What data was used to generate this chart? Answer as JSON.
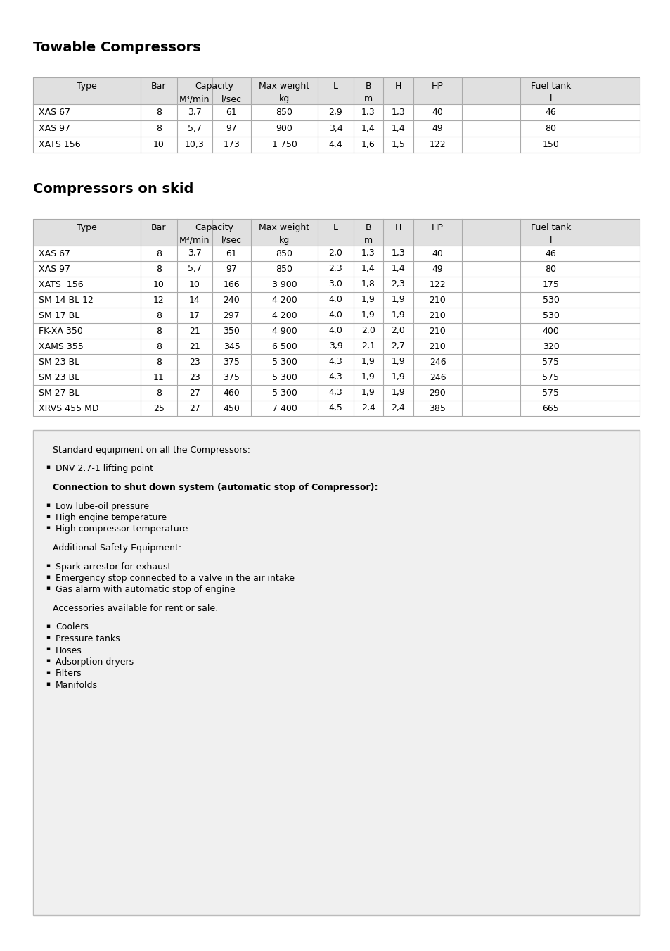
{
  "page_bg": "#ffffff",
  "title1": "Towable Compressors",
  "title2": "Compressors on skid",
  "table1_data": [
    [
      "XAS 67",
      "8",
      "3,7",
      "61",
      "850",
      "2,9",
      "1,3",
      "1,3",
      "40",
      "46"
    ],
    [
      "XAS 97",
      "8",
      "5,7",
      "97",
      "900",
      "3,4",
      "1,4",
      "1,4",
      "49",
      "80"
    ],
    [
      "XATS 156",
      "10",
      "10,3",
      "173",
      "1 750",
      "4,4",
      "1,6",
      "1,5",
      "122",
      "150"
    ]
  ],
  "table2_data": [
    [
      "XAS 67",
      "8",
      "3,7",
      "61",
      "850",
      "2,0",
      "1,3",
      "1,3",
      "40",
      "46"
    ],
    [
      "XAS 97",
      "8",
      "5,7",
      "97",
      "850",
      "2,3",
      "1,4",
      "1,4",
      "49",
      "80"
    ],
    [
      "XATS  156",
      "10",
      "10",
      "166",
      "3 900",
      "3,0",
      "1,8",
      "2,3",
      "122",
      "175"
    ],
    [
      "SM 14 BL 12",
      "12",
      "14",
      "240",
      "4 200",
      "4,0",
      "1,9",
      "1,9",
      "210",
      "530"
    ],
    [
      "SM 17 BL",
      "8",
      "17",
      "297",
      "4 200",
      "4,0",
      "1,9",
      "1,9",
      "210",
      "530"
    ],
    [
      "FK-XA 350",
      "8",
      "21",
      "350",
      "4 900",
      "4,0",
      "2,0",
      "2,0",
      "210",
      "400"
    ],
    [
      "XAMS 355",
      "8",
      "21",
      "345",
      "6 500",
      "3,9",
      "2,1",
      "2,7",
      "210",
      "320"
    ],
    [
      "SM 23 BL",
      "8",
      "23",
      "375",
      "5 300",
      "4,3",
      "1,9",
      "1,9",
      "246",
      "575"
    ],
    [
      "SM 23 BL",
      "11",
      "23",
      "375",
      "5 300",
      "4,3",
      "1,9",
      "1,9",
      "246",
      "575"
    ],
    [
      "SM 27 BL",
      "8",
      "27",
      "460",
      "5 300",
      "4,3",
      "1,9",
      "1,9",
      "290",
      "575"
    ],
    [
      "XRVS 455 MD",
      "25",
      "27",
      "450",
      "7 400",
      "4,5",
      "2,4",
      "2,4",
      "385",
      "665"
    ]
  ],
  "info_box_text": [
    {
      "text": "Standard equipment on all the Compressors:",
      "bold": false,
      "bullet": false
    },
    {
      "text": "",
      "bold": false,
      "bullet": false
    },
    {
      "text": "DNV 2.7-1 lifting point",
      "bold": false,
      "bullet": true
    },
    {
      "text": "",
      "bold": false,
      "bullet": false
    },
    {
      "text": "Connection to shut down system (automatic stop of Compressor):",
      "bold": true,
      "bullet": false
    },
    {
      "text": "",
      "bold": false,
      "bullet": false
    },
    {
      "text": "Low lube-oil pressure",
      "bold": false,
      "bullet": true
    },
    {
      "text": "High engine temperature",
      "bold": false,
      "bullet": true
    },
    {
      "text": "High compressor temperature",
      "bold": false,
      "bullet": true
    },
    {
      "text": "",
      "bold": false,
      "bullet": false
    },
    {
      "text": "Additional Safety Equipment:",
      "bold": false,
      "bullet": false
    },
    {
      "text": "",
      "bold": false,
      "bullet": false
    },
    {
      "text": "Spark arrestor for exhaust",
      "bold": false,
      "bullet": true
    },
    {
      "text": "Emergency stop connected to a valve in the air intake",
      "bold": false,
      "bullet": true
    },
    {
      "text": "Gas alarm with automatic stop of engine",
      "bold": false,
      "bullet": true
    },
    {
      "text": "",
      "bold": false,
      "bullet": false
    },
    {
      "text": "Accessories available for rent or sale:",
      "bold": false,
      "bullet": false
    },
    {
      "text": "",
      "bold": false,
      "bullet": false
    },
    {
      "text": "Coolers",
      "bold": false,
      "bullet": true
    },
    {
      "text": "Pressure tanks",
      "bold": false,
      "bullet": true
    },
    {
      "text": "Hoses",
      "bold": false,
      "bullet": true
    },
    {
      "text": "Adsorption dryers",
      "bold": false,
      "bullet": true
    },
    {
      "text": "Filters",
      "bold": false,
      "bullet": true
    },
    {
      "text": "Manifolds",
      "bold": false,
      "bullet": true
    }
  ],
  "header_bg": "#e0e0e0",
  "table_border": "#aaaaaa",
  "info_box_bg": "#f0f0f0",
  "info_box_border": "#bbbbbb",
  "font_size_title": 14,
  "font_size_header": 9,
  "font_size_data": 9,
  "font_size_info": 9
}
